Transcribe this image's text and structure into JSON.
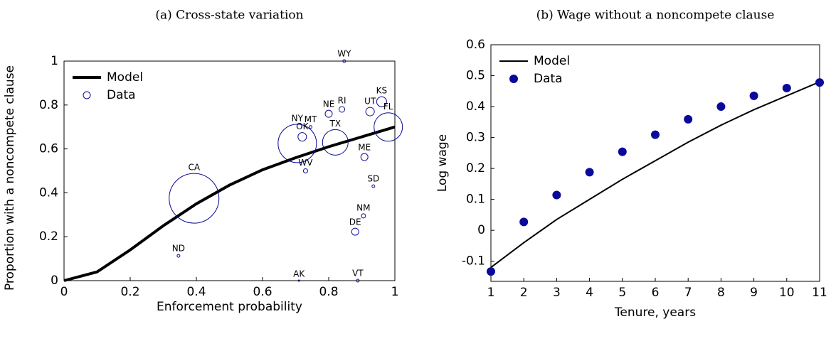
{
  "chart_data": [
    {
      "type": "scatter",
      "title": "(a) Cross-state variation",
      "xlabel": "Enforcement probability",
      "ylabel": "Proportion with a noncompete clause",
      "xlim": [
        0,
        1
      ],
      "ylim": [
        0,
        1
      ],
      "xticks": [
        0,
        0.2,
        0.4,
        0.6,
        0.8,
        1
      ],
      "yticks": [
        0,
        0.2,
        0.4,
        0.6,
        0.8,
        1
      ],
      "legend": "upper left",
      "series": [
        {
          "name": "Model",
          "type": "line",
          "color": "#000000",
          "x": [
            0,
            0.1,
            0.2,
            0.3,
            0.4,
            0.5,
            0.6,
            0.7,
            0.8,
            0.9,
            1
          ],
          "values": [
            0,
            0.04,
            0.14,
            0.25,
            0.35,
            0.435,
            0.505,
            0.56,
            0.61,
            0.655,
            0.7
          ]
        },
        {
          "name": "Data",
          "type": "bubble",
          "color": "#0a0a9a",
          "labels": [
            "WY",
            "KS",
            "UT",
            "FL",
            "NY",
            "OK",
            "MT",
            "WV",
            "CA",
            "SD",
            "NM",
            "DE",
            "ND",
            "AK",
            "VT",
            "ME",
            "RI",
            "NE",
            "TX"
          ],
          "x": [
            0.847,
            0.96,
            0.925,
            0.98,
            0.705,
            0.72,
            0.745,
            0.73,
            0.393,
            0.935,
            0.905,
            0.88,
            0.346,
            0.71,
            0.888,
            0.908,
            0.84,
            0.8,
            0.82
          ],
          "values": [
            1.0,
            0.815,
            0.77,
            0.7,
            0.625,
            0.655,
            0.7,
            0.5,
            0.375,
            0.43,
            0.295,
            0.223,
            0.113,
            0,
            0,
            0.563,
            0.78,
            0.76,
            0.63
          ],
          "sizes": [
            2,
            7,
            6,
            20,
            27,
            6,
            2,
            3,
            35,
            2,
            3,
            5,
            2,
            1,
            2,
            5,
            4,
            5,
            18
          ]
        }
      ]
    },
    {
      "type": "line",
      "title": "(b) Wage without a noncompete clause",
      "xlabel": "Tenure, years",
      "ylabel": "Log wage",
      "xlim": [
        1,
        11
      ],
      "ylim": [
        -0.165,
        0.6
      ],
      "xticks": [
        1,
        2,
        3,
        4,
        5,
        6,
        7,
        8,
        9,
        10,
        11
      ],
      "yticks": [
        -0.1,
        0,
        0.1,
        0.2,
        0.3,
        0.4,
        0.5,
        0.6
      ],
      "legend": "upper left",
      "series": [
        {
          "name": "Model",
          "type": "line",
          "color": "#000000",
          "x": [
            1,
            2,
            3,
            4,
            5,
            6,
            7,
            8,
            9,
            10,
            11
          ],
          "values": [
            -0.12,
            -0.04,
            0.035,
            0.1,
            0.165,
            0.225,
            0.285,
            0.34,
            0.39,
            0.435,
            0.48
          ]
        },
        {
          "name": "Data",
          "type": "dots",
          "color": "#0a0a9a",
          "x": [
            1,
            2,
            3,
            4,
            5,
            6,
            7,
            8,
            9,
            10,
            11
          ],
          "values": [
            -0.133,
            0.027,
            0.114,
            0.188,
            0.254,
            0.309,
            0.359,
            0.4,
            0.435,
            0.46,
            0.478
          ]
        }
      ]
    }
  ]
}
